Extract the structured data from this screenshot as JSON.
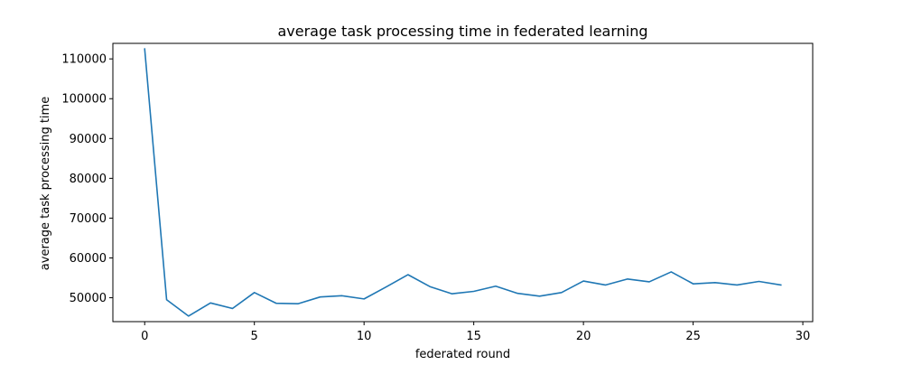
{
  "chart_data": {
    "type": "line",
    "title": "average task processing time in federated learning",
    "xlabel": "federated round",
    "ylabel": "average task processing time",
    "xlim": [
      -1.45,
      30.45
    ],
    "ylim": [
      44000,
      113900
    ],
    "xticks": [
      0,
      5,
      10,
      15,
      20,
      25,
      30
    ],
    "yticks": [
      50000,
      60000,
      70000,
      80000,
      90000,
      100000,
      110000
    ],
    "grid": false,
    "legend": "none",
    "series": [
      {
        "color": "#1f77b4",
        "x": [
          0,
          1,
          2,
          3,
          4,
          5,
          6,
          7,
          8,
          9,
          10,
          11,
          12,
          13,
          14,
          15,
          16,
          17,
          18,
          19,
          20,
          21,
          22,
          23,
          24,
          25,
          26,
          27,
          28,
          29
        ],
        "y": [
          112500,
          49500,
          45400,
          48700,
          47300,
          51300,
          48600,
          48500,
          50200,
          50500,
          49700,
          52700,
          55800,
          52800,
          51000,
          51600,
          52900,
          51100,
          50400,
          51300,
          54200,
          53200,
          54700,
          54000,
          56500,
          53500,
          53800,
          53200,
          54100,
          53200
        ]
      }
    ]
  }
}
